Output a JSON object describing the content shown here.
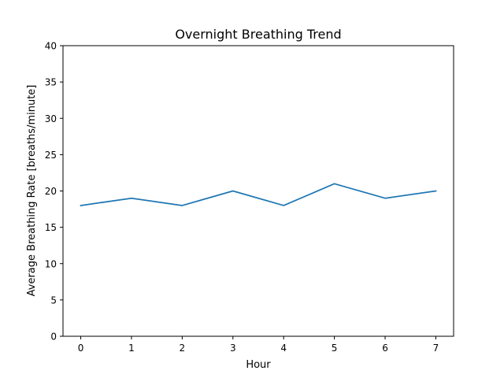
{
  "chart_data": {
    "type": "line",
    "title": "Overnight Breathing Trend",
    "xlabel": "Hour",
    "ylabel": "Average Breathing Rate [breaths/minute]",
    "x": [
      0,
      1,
      2,
      3,
      4,
      5,
      6,
      7
    ],
    "series": [
      {
        "values": [
          18,
          19,
          18,
          20,
          18,
          21,
          19,
          20
        ],
        "color": "#1f77b4"
      }
    ],
    "xlim": [
      -0.35,
      7.35
    ],
    "ylim": [
      0,
      40
    ],
    "xticks": [
      "0",
      "1",
      "2",
      "3",
      "4",
      "5",
      "6",
      "7"
    ],
    "yticks": [
      "0",
      "5",
      "10",
      "15",
      "20",
      "25",
      "30",
      "35",
      "40"
    ],
    "grid": false,
    "legend": "none"
  }
}
